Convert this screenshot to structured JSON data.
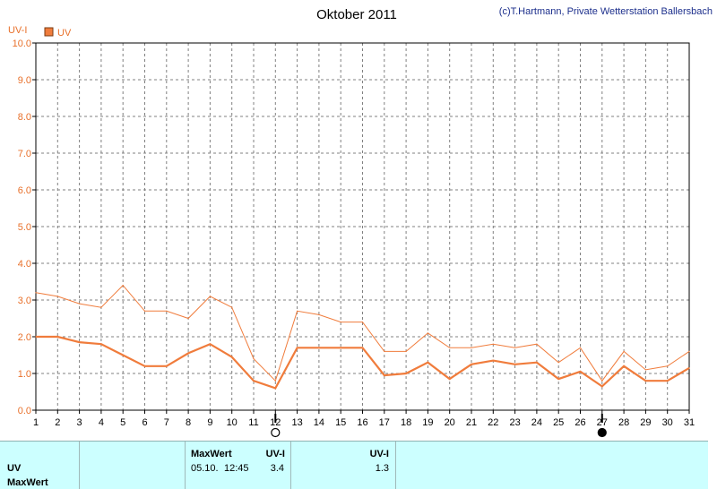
{
  "header": {
    "title": "Oktober 2011",
    "copyright": "(c)T.Hartmann, Private Wetterstation Ballersbach"
  },
  "chart_data": {
    "type": "line",
    "title": "Oktober 2011",
    "ylabel": "UV-I",
    "xlabel": "",
    "ylim": [
      0,
      10
    ],
    "y_ticks": [
      "0.0",
      "1.0",
      "2.0",
      "3.0",
      "4.0",
      "5.0",
      "6.0",
      "7.0",
      "8.0",
      "9.0",
      "10.0"
    ],
    "categories": [
      "1",
      "2",
      "3",
      "4",
      "5",
      "6",
      "7",
      "8",
      "9",
      "10",
      "11",
      "12",
      "13",
      "14",
      "15",
      "16",
      "17",
      "18",
      "19",
      "20",
      "21",
      "22",
      "23",
      "24",
      "25",
      "26",
      "27",
      "28",
      "29",
      "30",
      "31"
    ],
    "grid": true,
    "legend": "top-left",
    "legend_entries": [
      {
        "label": "UV",
        "color": "#f07c3c"
      }
    ],
    "series": [
      {
        "name": "UV",
        "color": "#f07c3c",
        "values": [
          3.2,
          3.1,
          2.9,
          2.8,
          3.4,
          2.7,
          2.7,
          2.5,
          3.1,
          2.8,
          1.4,
          0.8,
          2.7,
          2.6,
          2.4,
          2.4,
          1.6,
          1.6,
          2.1,
          1.7,
          1.7,
          1.8,
          1.7,
          1.8,
          1.3,
          1.7,
          0.8,
          1.6,
          1.1,
          1.2,
          1.6
        ]
      },
      {
        "name": "UV",
        "color": "#f07c3c",
        "values": [
          2.0,
          2.0,
          1.85,
          1.8,
          1.5,
          1.2,
          1.2,
          1.55,
          1.8,
          1.45,
          0.8,
          0.6,
          1.7,
          1.7,
          1.7,
          1.7,
          0.95,
          1.0,
          1.3,
          0.85,
          1.25,
          1.35,
          1.25,
          1.3,
          0.85,
          1.05,
          0.65,
          1.2,
          0.8,
          0.8,
          1.15
        ]
      }
    ],
    "moon_phases": [
      {
        "day": "12",
        "phase": "full-moon"
      },
      {
        "day": "27",
        "phase": "new-moon"
      }
    ]
  },
  "stats_panel": {
    "row_labels": [
      "UV",
      "MaxWert"
    ],
    "group1": {
      "header": "MaxWert",
      "unit_header": "UV-I",
      "date": "05.10.",
      "time": "12:45",
      "value": "3.4"
    },
    "group2": {
      "unit_header": "UV-I",
      "value": "1.3"
    }
  }
}
